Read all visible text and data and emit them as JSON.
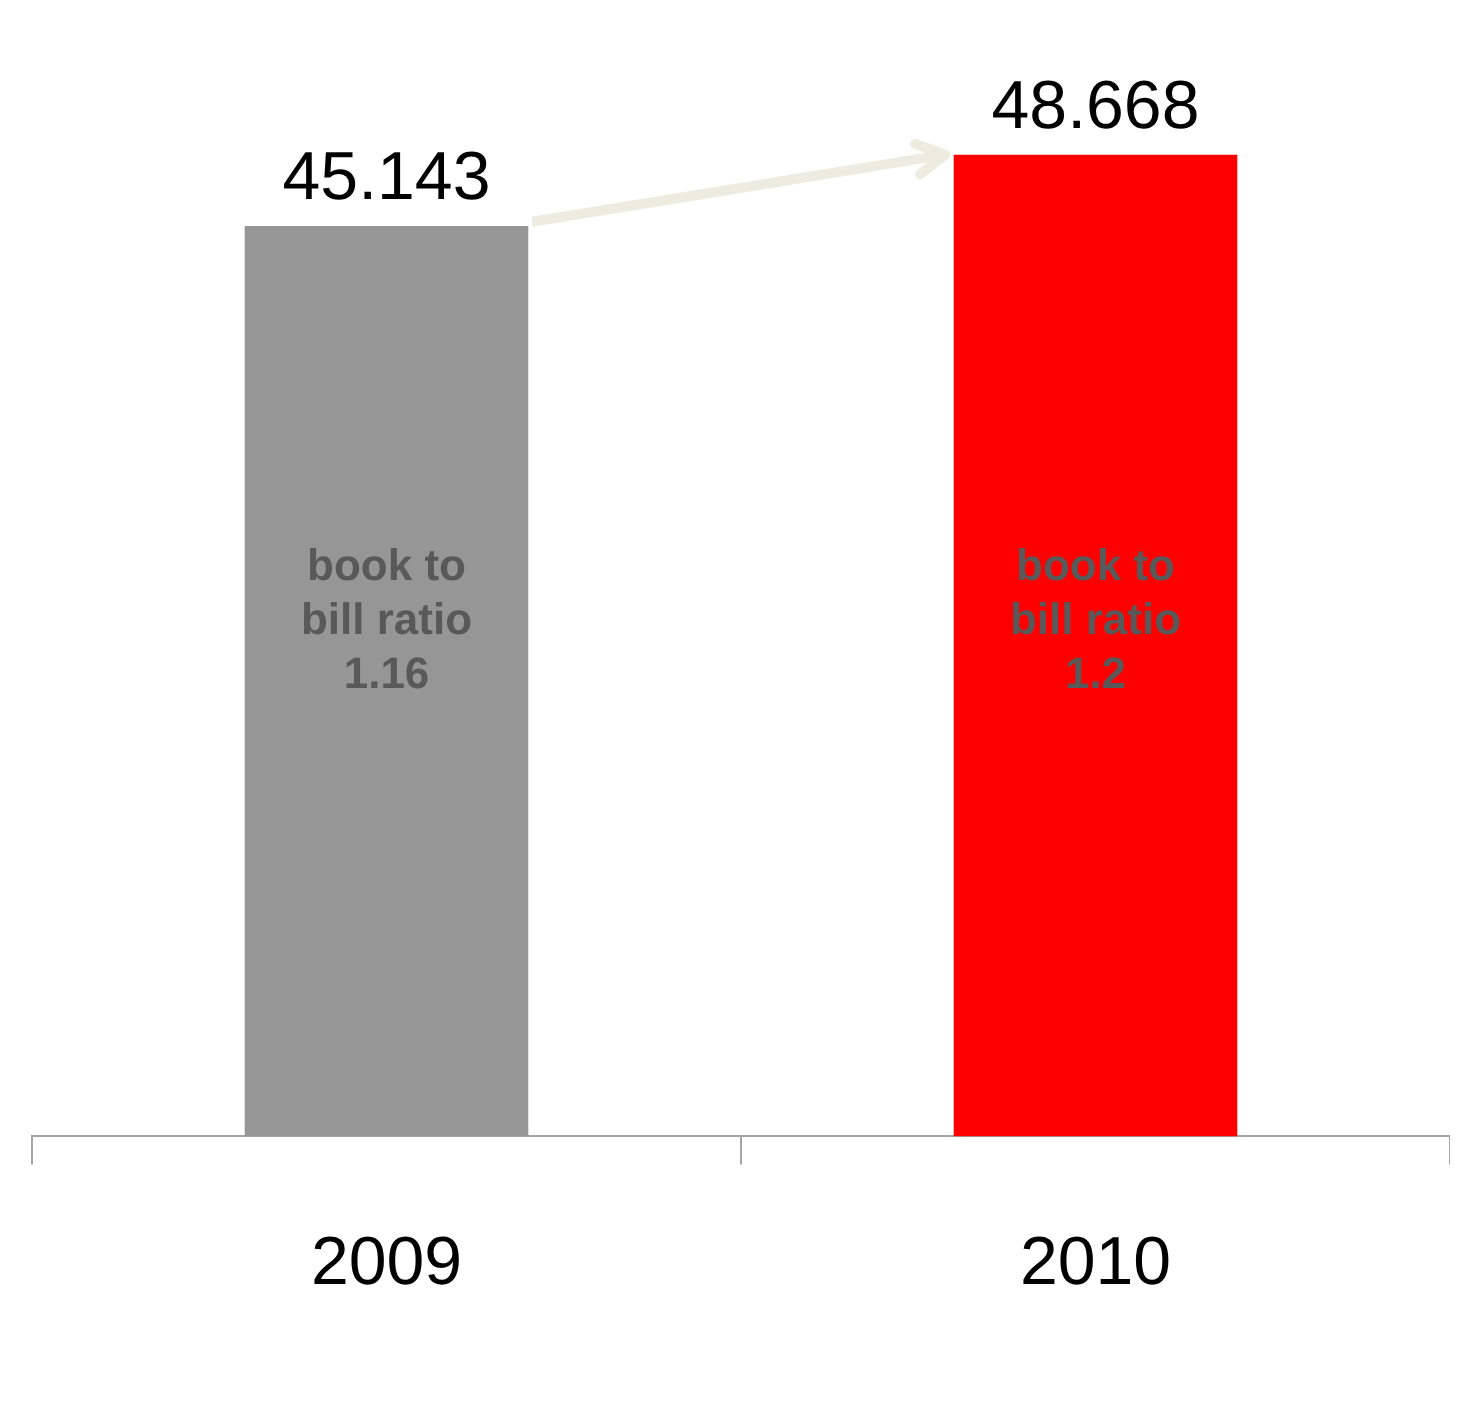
{
  "chart_data": {
    "type": "bar",
    "categories": [
      "2009",
      "2010"
    ],
    "colors": [
      "#969696",
      "#ff0000"
    ],
    "values": [
      45.143,
      48.668
    ],
    "data_labels": true,
    "relative": false,
    "grid": false,
    "legend": false,
    "annotations": [
      "book to bill ratio 1.16",
      "book to bill ratio 1.2"
    ]
  }
}
